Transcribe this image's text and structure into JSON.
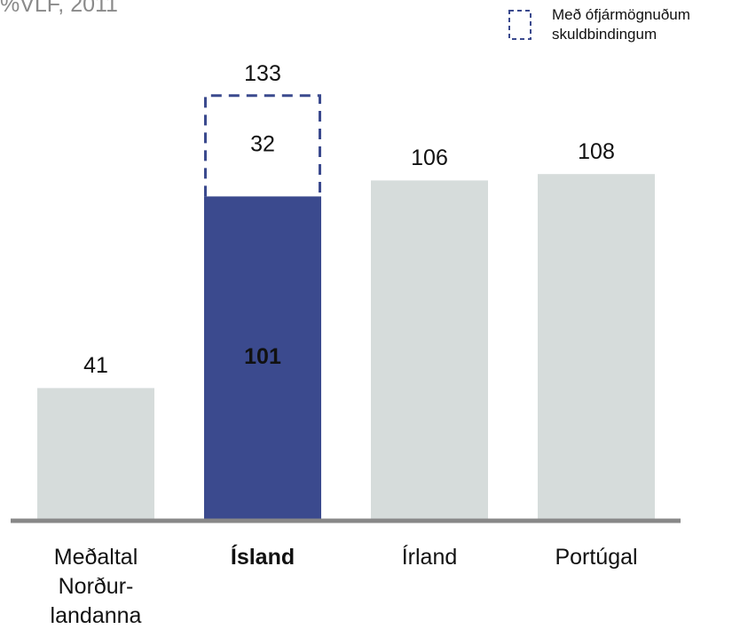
{
  "chart_data": {
    "type": "stacked_bar",
    "subtitle": "%VLF, 2011",
    "categories": [
      "Meðaltal\nNorður-\nlandanna",
      "Ísland",
      "Írland",
      "Portúgal"
    ],
    "bold_categories": [
      false,
      true,
      false,
      false
    ],
    "series": [
      {
        "colors": [
          "#d6dcdb",
          "#3b4a8e",
          "#d6dcdb",
          "#d6dcdb"
        ],
        "values": [
          41,
          101,
          106,
          108
        ]
      },
      {
        "name": "Með ófjármögnuðum skuldbindingum",
        "style": "dashed",
        "color": "#3b4a8e",
        "values": [
          null,
          32,
          null,
          null
        ]
      }
    ],
    "totals": [
      null,
      133,
      null,
      null
    ],
    "legend": "top-right"
  }
}
